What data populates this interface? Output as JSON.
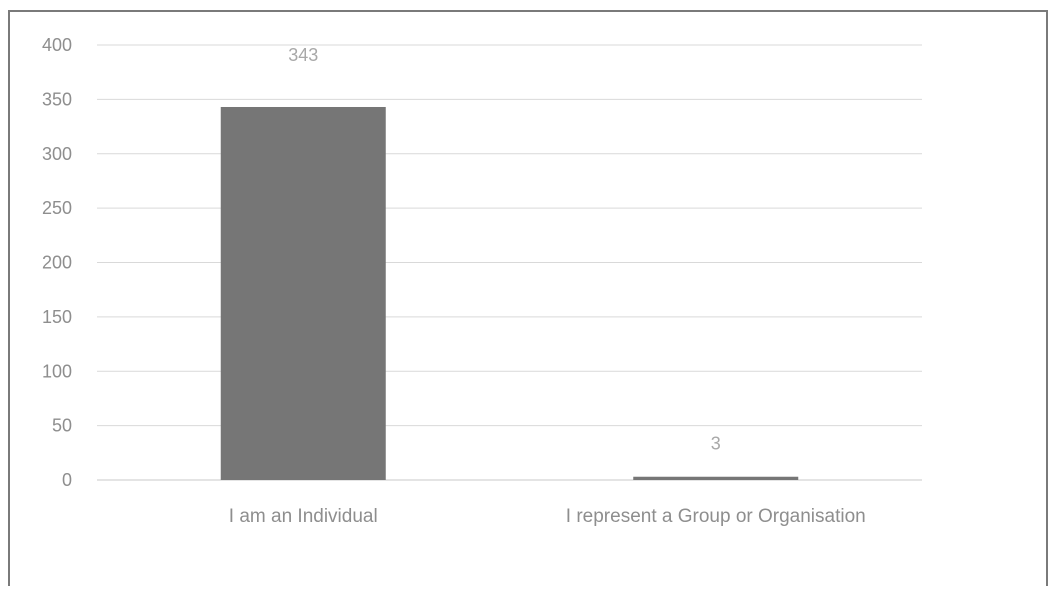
{
  "chart_data": {
    "type": "bar",
    "title": "",
    "xlabel": "",
    "ylabel": "",
    "categories": [
      "I am an Individual",
      "I represent a Group or Organisation"
    ],
    "values": [
      343,
      3
    ],
    "data_labels": [
      "343",
      "3"
    ],
    "ylim": [
      0,
      400
    ],
    "yticks": [
      0,
      50,
      100,
      150,
      200,
      250,
      300,
      350,
      400
    ],
    "grid": true,
    "legend": "none",
    "bar_color": "#767676",
    "gridline_color": "#d9d9d9",
    "text_color": "#8e8e8e"
  }
}
